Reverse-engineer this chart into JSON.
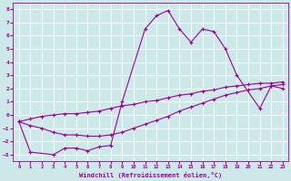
{
  "color": "#990099",
  "bg_color": "#cce8e8",
  "grid_color": "#ffffff",
  "ylim": [
    -3.5,
    8.5
  ],
  "xlim": [
    -0.5,
    23.5
  ],
  "xlabel": "Windchill (Refroidissement éolien,°C)",
  "yticks": [
    -3,
    -2,
    -1,
    0,
    1,
    2,
    3,
    4,
    5,
    6,
    7,
    8
  ],
  "xticks": [
    0,
    1,
    2,
    3,
    4,
    5,
    6,
    7,
    8,
    9,
    10,
    11,
    12,
    13,
    14,
    15,
    16,
    17,
    18,
    19,
    20,
    21,
    22,
    23
  ],
  "main_x": [
    0,
    1,
    3,
    4,
    5,
    6,
    7,
    8,
    9,
    11,
    12,
    13,
    14,
    15,
    16,
    17,
    18,
    19,
    21,
    22,
    23
  ],
  "main_y": [
    -0.5,
    -2.8,
    -3.0,
    -2.5,
    -2.5,
    -2.7,
    -2.4,
    -2.3,
    1.0,
    6.5,
    7.5,
    7.9,
    6.5,
    5.5,
    6.5,
    6.3,
    5.0,
    3.0,
    0.5,
    2.2,
    2.0
  ],
  "upper_x": [
    0,
    1,
    2,
    3,
    4,
    5,
    6,
    7,
    8,
    9,
    10,
    11,
    12,
    13,
    14,
    15,
    16,
    17,
    18,
    19,
    20,
    21,
    22,
    23
  ],
  "upper_y": [
    -0.5,
    -0.3,
    -0.1,
    0.0,
    0.1,
    0.1,
    0.2,
    0.3,
    0.5,
    0.7,
    0.8,
    1.0,
    1.1,
    1.3,
    1.5,
    1.6,
    1.8,
    1.9,
    2.1,
    2.2,
    2.3,
    2.4,
    2.4,
    2.5
  ],
  "lower_x": [
    0,
    1,
    2,
    3,
    4,
    5,
    6,
    7,
    8,
    9,
    10,
    11,
    12,
    13,
    14,
    15,
    16,
    17,
    18,
    19,
    20,
    21,
    22,
    23
  ],
  "lower_y": [
    -0.5,
    -0.8,
    -1.0,
    -1.3,
    -1.5,
    -1.5,
    -1.6,
    -1.6,
    -1.5,
    -1.3,
    -1.0,
    -0.7,
    -0.4,
    -0.1,
    0.3,
    0.6,
    0.9,
    1.2,
    1.5,
    1.7,
    1.9,
    2.0,
    2.2,
    2.3
  ]
}
